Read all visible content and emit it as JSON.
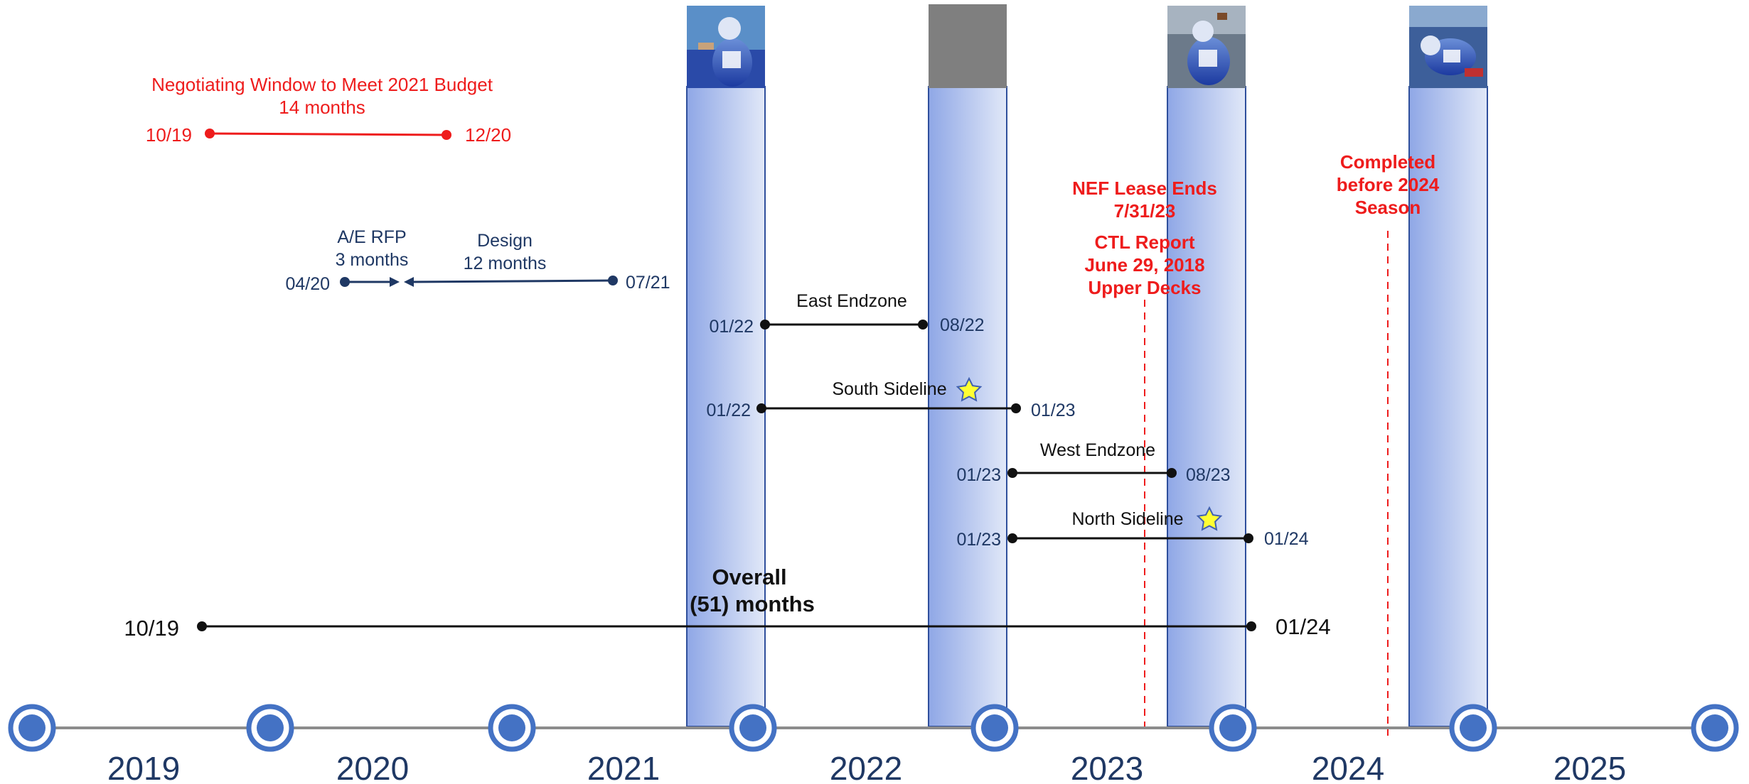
{
  "colors": {
    "red": "#ee1c1c",
    "navy": "#1f3864",
    "black": "#111111",
    "axis_line": "#8c8c8c",
    "axis_dot": "#4472c4",
    "season_bar_light": "#e1e8f8",
    "season_bar_dark": "#8fa7e6",
    "season_bar_border": "#2f4f9c",
    "star_fill": "#ffff33",
    "star_stroke": "#4060b0",
    "photo_placeholder": "#7f7f7f"
  },
  "years": [
    "2019",
    "2020",
    "2021",
    "2022",
    "2023",
    "2024",
    "2025"
  ],
  "negotiating_window": {
    "title_line1": "Negotiating Window to Meet 2021 Budget",
    "title_line2": "14 months",
    "start": "10/19",
    "end": "12/20"
  },
  "ae_rfp": {
    "label_line1": "A/E RFP",
    "label_line2": "3 months",
    "start": "04/20"
  },
  "design": {
    "label_line1": "Design",
    "label_line2": "12 months",
    "end": "07/21"
  },
  "phases": [
    {
      "name": "East Endzone",
      "start": "01/22",
      "end": "08/22"
    },
    {
      "name": "South Sideline",
      "start": "01/22",
      "end": "01/23",
      "star": true
    },
    {
      "name": "West Endzone",
      "start": "01/23",
      "end": "08/23"
    },
    {
      "name": "North Sideline",
      "start": "01/23",
      "end": "01/24",
      "star": true
    }
  ],
  "overall": {
    "label_line1": "Overall",
    "label_line2": "(51) months",
    "start": "10/19",
    "end": "01/24"
  },
  "annotations": {
    "nef_line1": "NEF Lease Ends",
    "nef_line2": "7/31/23",
    "ctl_line1": "CTL Report",
    "ctl_line2": "June 29, 2018",
    "ctl_line3": "Upper Decks",
    "completed_line1": "Completed",
    "completed_line2": "before 2024",
    "completed_line3": "Season"
  },
  "season_columns": [
    {
      "photo": "player-photo-icon"
    },
    {
      "photo": "gray-placeholder"
    },
    {
      "photo": "player-photo-icon"
    },
    {
      "photo": "player-photo-icon"
    }
  ]
}
